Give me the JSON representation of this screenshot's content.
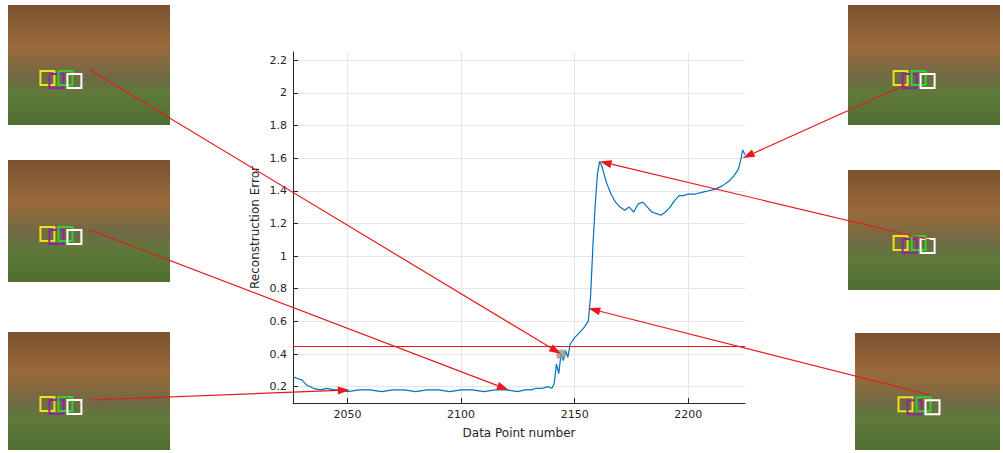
{
  "chart_data": {
    "type": "line",
    "x_label": "Data Point number",
    "y_label": "Reconstruction Error",
    "x": [
      2026,
      2028,
      2030,
      2032,
      2035,
      2038,
      2041,
      2044,
      2047,
      2050,
      2055,
      2060,
      2065,
      2070,
      2075,
      2080,
      2085,
      2090,
      2095,
      2100,
      2105,
      2110,
      2115,
      2120,
      2125,
      2128,
      2131,
      2133,
      2136,
      2138,
      2140,
      2141,
      2142,
      2143,
      2144,
      2145,
      2146,
      2147,
      2148,
      2150,
      2152,
      2154,
      2156,
      2157,
      2158,
      2159,
      2160,
      2161,
      2162,
      2164,
      2166,
      2168,
      2170,
      2172,
      2174,
      2176,
      2178,
      2180,
      2182,
      2184,
      2186,
      2188,
      2190,
      2192,
      2194,
      2196,
      2198,
      2200,
      2203,
      2206,
      2209,
      2212,
      2215,
      2218,
      2220,
      2222,
      2223,
      2224,
      2225
    ],
    "values": [
      0.26,
      0.25,
      0.24,
      0.21,
      0.19,
      0.18,
      0.19,
      0.18,
      0.18,
      0.17,
      0.18,
      0.18,
      0.17,
      0.18,
      0.18,
      0.17,
      0.18,
      0.18,
      0.17,
      0.18,
      0.18,
      0.17,
      0.18,
      0.18,
      0.17,
      0.18,
      0.18,
      0.19,
      0.19,
      0.2,
      0.19,
      0.22,
      0.34,
      0.28,
      0.4,
      0.36,
      0.42,
      0.38,
      0.46,
      0.5,
      0.53,
      0.56,
      0.6,
      0.75,
      1.05,
      1.3,
      1.5,
      1.58,
      1.55,
      1.45,
      1.38,
      1.33,
      1.3,
      1.28,
      1.3,
      1.27,
      1.32,
      1.33,
      1.3,
      1.27,
      1.26,
      1.25,
      1.27,
      1.3,
      1.34,
      1.37,
      1.37,
      1.38,
      1.38,
      1.39,
      1.4,
      1.41,
      1.43,
      1.46,
      1.49,
      1.53,
      1.58,
      1.65,
      1.62
    ],
    "color": "#0072bd",
    "xlim": [
      2026,
      2225
    ],
    "ylim": [
      0.1,
      2.25
    ],
    "xticks": [
      2050,
      2100,
      2150,
      2200
    ],
    "yticks": [
      0.2,
      0.4,
      0.6,
      0.8,
      1,
      1.2,
      1.4,
      1.6,
      1.8,
      2,
      2.2
    ],
    "grid": true,
    "threshold": 0.45,
    "marked_point": {
      "x": 2144,
      "y": 0.4
    },
    "pointers": [
      {
        "x": 2144,
        "y": 0.4
      },
      {
        "x": 2121,
        "y": 0.18
      },
      {
        "x": 2051,
        "y": 0.18
      },
      {
        "x": 2224,
        "y": 1.6
      },
      {
        "x": 2161,
        "y": 1.58
      },
      {
        "x": 2156,
        "y": 0.68
      }
    ]
  }
}
